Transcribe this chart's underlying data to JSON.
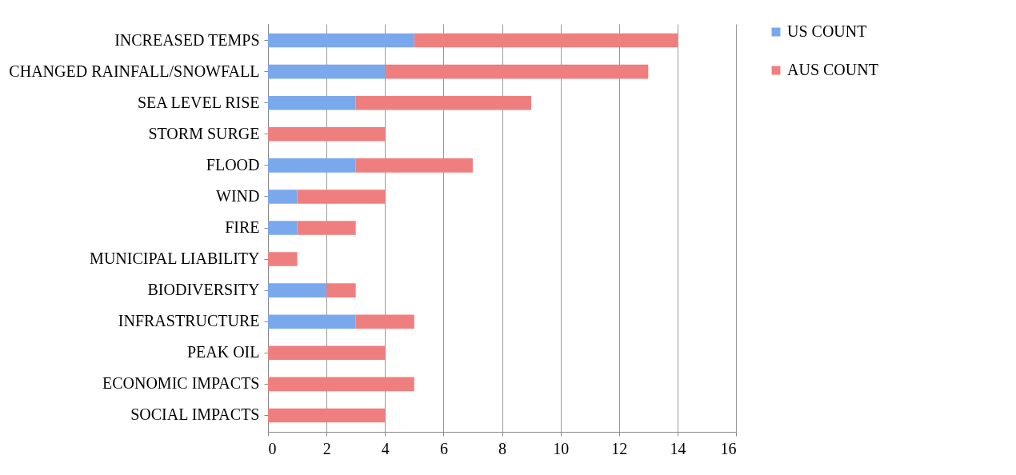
{
  "chart_data": {
    "type": "bar",
    "orientation": "horizontal",
    "stacked": true,
    "categories": [
      "INCREASED TEMPS",
      "CHANGED RAINFALL/SNOWFALL",
      "SEA LEVEL RISE",
      "STORM SURGE",
      "FLOOD",
      "WIND",
      "FIRE",
      "MUNICIPAL LIABILITY",
      "BIODIVERSITY",
      "INFRASTRUCTURE",
      "PEAK OIL",
      "ECONOMIC IMPACTS",
      "SOCIAL IMPACTS"
    ],
    "series": [
      {
        "name": "US COUNT",
        "color": "#7aa8ec",
        "values": [
          5,
          4,
          3,
          0,
          3,
          1,
          1,
          0,
          2,
          3,
          0,
          0,
          0
        ]
      },
      {
        "name": "AUS COUNT",
        "color": "#ef7f7f",
        "values": [
          9,
          9,
          6,
          4,
          4,
          3,
          2,
          1,
          1,
          2,
          4,
          5,
          4
        ]
      }
    ],
    "xlim": [
      0,
      16
    ],
    "xticks": [
      0,
      2,
      4,
      6,
      8,
      10,
      12,
      14,
      16
    ],
    "grid": "x",
    "legend": "right"
  }
}
